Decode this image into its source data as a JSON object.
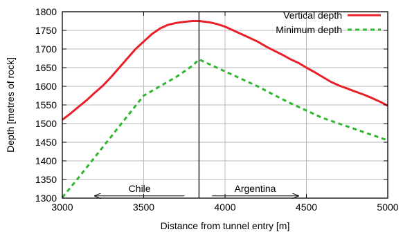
{
  "chart_data": {
    "type": "line",
    "title": "",
    "xlabel": "Distance from tunnel entry [m]",
    "ylabel": "Depth [metres of rock]",
    "xlim": [
      3000,
      5000
    ],
    "ylim": [
      1300,
      1800
    ],
    "xticks": [
      3000,
      3500,
      4000,
      4500,
      5000
    ],
    "yticks": [
      1300,
      1350,
      1400,
      1450,
      1500,
      1550,
      1600,
      1650,
      1700,
      1750,
      1800
    ],
    "grid": true,
    "legend_position": "top-right",
    "border_x": 3840,
    "series": [
      {
        "name": "Vertical depth",
        "color": "#e8202a",
        "style": "solid",
        "x": [
          3000,
          3050,
          3100,
          3150,
          3200,
          3250,
          3300,
          3350,
          3400,
          3450,
          3500,
          3550,
          3600,
          3650,
          3700,
          3750,
          3800,
          3840,
          3900,
          3950,
          4000,
          4050,
          4100,
          4150,
          4200,
          4250,
          4300,
          4350,
          4400,
          4450,
          4500,
          4550,
          4600,
          4650,
          4700,
          4750,
          4800,
          4850,
          4900,
          4950,
          5000
        ],
        "y": [
          1510,
          1527,
          1545,
          1563,
          1583,
          1602,
          1625,
          1650,
          1675,
          1700,
          1720,
          1740,
          1755,
          1765,
          1770,
          1773,
          1775,
          1775,
          1772,
          1767,
          1760,
          1750,
          1740,
          1730,
          1720,
          1707,
          1696,
          1685,
          1673,
          1663,
          1650,
          1638,
          1625,
          1612,
          1602,
          1594,
          1586,
          1578,
          1569,
          1559,
          1548
        ]
      },
      {
        "name": "Minimum depth",
        "color": "#2eb62e",
        "style": "dashed",
        "x": [
          3000,
          3100,
          3200,
          3300,
          3400,
          3500,
          3600,
          3700,
          3800,
          3840,
          3900,
          4000,
          4100,
          4200,
          4300,
          4400,
          4500,
          4600,
          4700,
          4800,
          4900,
          5000
        ],
        "y": [
          1302,
          1355,
          1410,
          1465,
          1520,
          1575,
          1600,
          1625,
          1655,
          1672,
          1660,
          1640,
          1620,
          1600,
          1577,
          1555,
          1535,
          1515,
          1500,
          1485,
          1470,
          1455
        ]
      }
    ],
    "annotations": [
      {
        "label": "Chile",
        "arrow": "left",
        "from": 3750,
        "to": 3200,
        "y": 1306
      },
      {
        "label": "Argentina",
        "arrow": "right",
        "from": 3920,
        "to": 4450,
        "y": 1306
      }
    ]
  }
}
